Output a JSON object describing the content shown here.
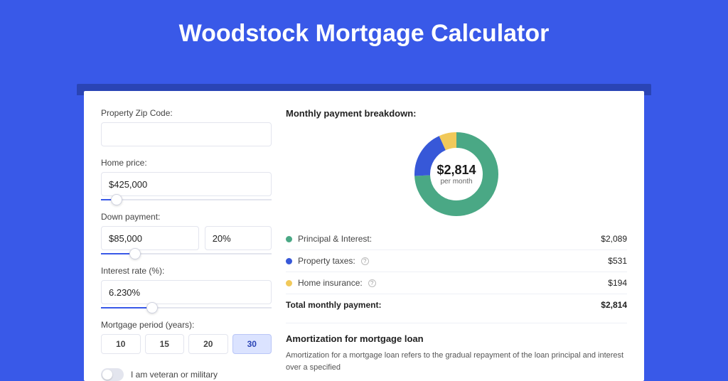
{
  "title": "Woodstock Mortgage Calculator",
  "colors": {
    "page_bg": "#3959e8",
    "shadow": "#2a44b5",
    "card_bg": "#ffffff",
    "border": "#e3e5ee",
    "text": "#222222",
    "muted": "#444444",
    "accent": "#3959e8"
  },
  "form": {
    "zip": {
      "label": "Property Zip Code:",
      "value": ""
    },
    "home_price": {
      "label": "Home price:",
      "value": "$425,000",
      "slider_pct": 9
    },
    "down_payment": {
      "label": "Down payment:",
      "amount": "$85,000",
      "pct": "20%",
      "slider_pct": 20
    },
    "interest_rate": {
      "label": "Interest rate (%):",
      "value": "6.230%",
      "slider_pct": 30
    },
    "mortgage_period": {
      "label": "Mortgage period (years):",
      "options": [
        "10",
        "15",
        "20",
        "30"
      ],
      "selected": "30"
    },
    "veteran": {
      "label": "I am veteran or military",
      "on": false
    }
  },
  "breakdown": {
    "title": "Monthly payment breakdown:",
    "center_amount": "$2,814",
    "center_sub": "per month",
    "donut": {
      "radius": 48,
      "stroke_width": 22,
      "segments": [
        {
          "label": "Principal & Interest:",
          "value": "$2,089",
          "pct": 74.2,
          "color": "#4aa885",
          "help": false
        },
        {
          "label": "Property taxes:",
          "value": "$531",
          "pct": 18.9,
          "color": "#3758d8",
          "help": true
        },
        {
          "label": "Home insurance:",
          "value": "$194",
          "pct": 6.9,
          "color": "#f1c95a",
          "help": true
        }
      ]
    },
    "total": {
      "label": "Total monthly payment:",
      "value": "$2,814"
    }
  },
  "amortization": {
    "title": "Amortization for mortgage loan",
    "text": "Amortization for a mortgage loan refers to the gradual repayment of the loan principal and interest over a specified"
  }
}
